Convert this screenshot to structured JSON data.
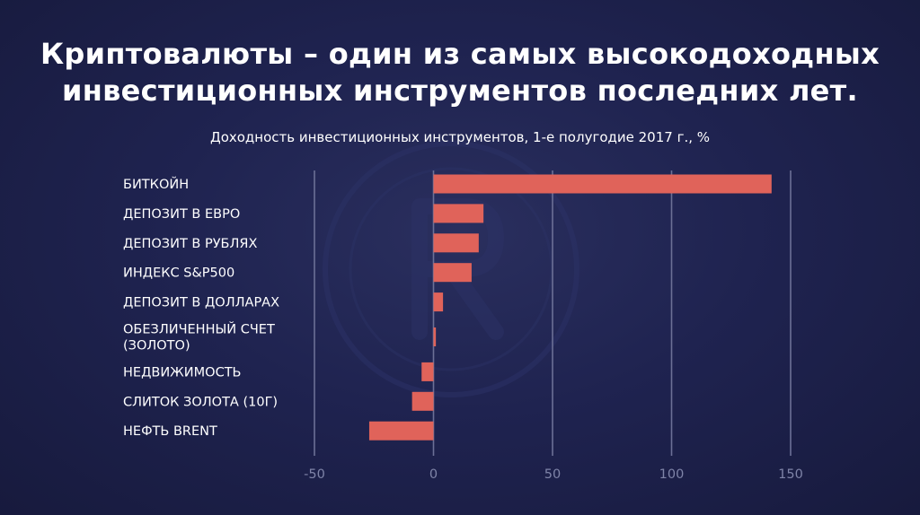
{
  "slide": {
    "title_line1": "Криптовалюты – один из самых высокодоходных",
    "title_line2": "инвестиционных инструментов последних лет.",
    "subtitle": "Доходность инвестиционных инструментов, 1-е полугодие 2017 г., %"
  },
  "colors": {
    "background": "#1f2350",
    "bar": "#e0635a",
    "gridline": "#6c7096",
    "text": "#ffffff",
    "tick_text": "#7f84a8"
  },
  "chart_data": {
    "type": "bar",
    "orientation": "horizontal",
    "categories": [
      [
        "БИТКОЙН"
      ],
      [
        "ДЕПОЗИТ В ЕВРО"
      ],
      [
        "ДЕПОЗИТ В РУБЛЯХ"
      ],
      [
        "ИНДЕКС S&P500"
      ],
      [
        "ДЕПОЗИТ В ДОЛЛАРАХ"
      ],
      [
        "ОБЕЗЛИЧЕННЫЙ СЧЕТ",
        "(ЗОЛОТО)"
      ],
      [
        "НЕДВИЖИМОСТЬ"
      ],
      [
        "СЛИТОК ЗОЛОТА (10Г)"
      ],
      [
        "НЕФТЬ BRENT"
      ]
    ],
    "values": [
      142,
      21,
      19,
      16,
      4,
      1,
      -5,
      -9,
      -27
    ],
    "xlim": [
      -50,
      150
    ],
    "xticks": [
      -50,
      0,
      50,
      100,
      150
    ],
    "xtick_labels": [
      "-50",
      "0",
      "50",
      "100",
      "150"
    ],
    "grid": true
  }
}
